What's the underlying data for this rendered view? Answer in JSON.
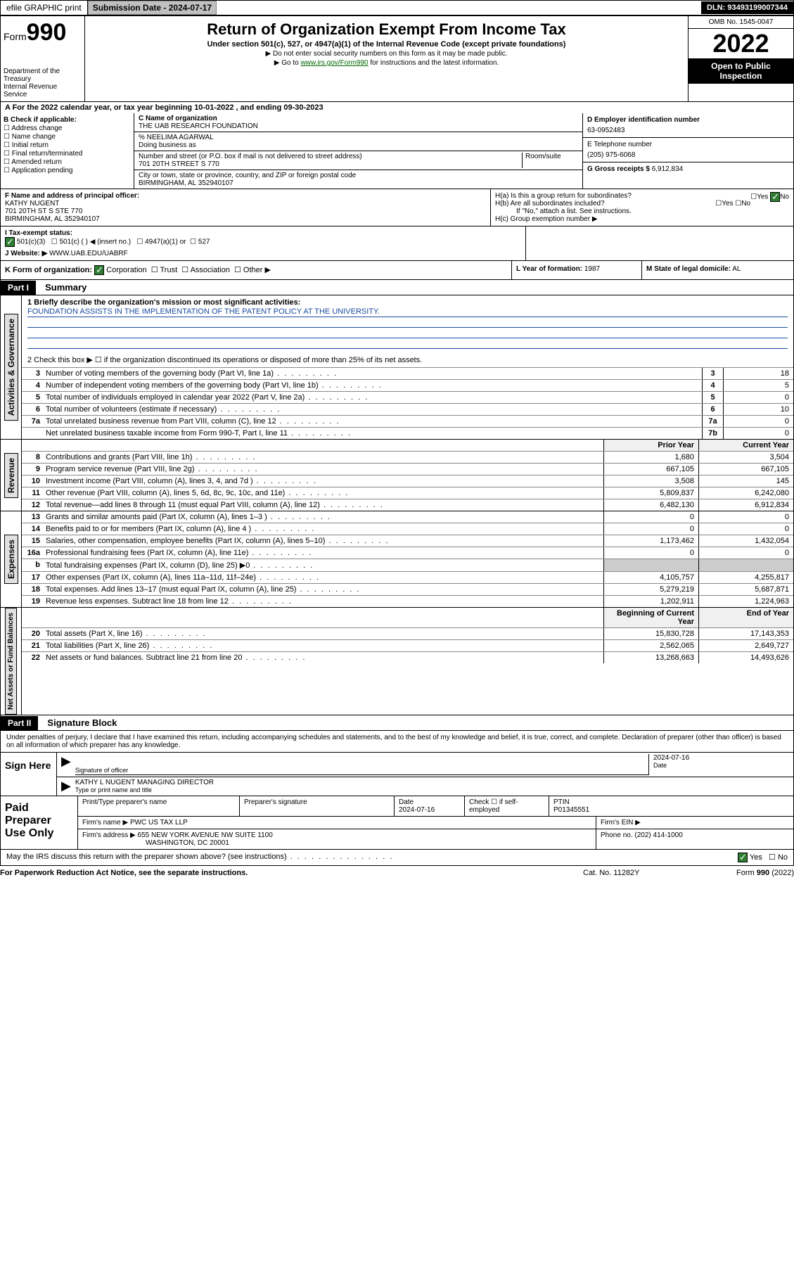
{
  "topbar": {
    "efile": "efile GRAPHIC print",
    "submission_label": "Submission Date - 2024-07-17",
    "dln": "DLN: 93493199007344"
  },
  "header": {
    "form_prefix": "Form",
    "form_num": "990",
    "title": "Return of Organization Exempt From Income Tax",
    "subtitle": "Under section 501(c), 527, or 4947(a)(1) of the Internal Revenue Code (except private foundations)",
    "note1": "▶ Do not enter social security numbers on this form as it may be made public.",
    "note2_prefix": "▶ Go to ",
    "note2_link": "www.irs.gov/Form990",
    "note2_suffix": " for instructions and the latest information.",
    "dept": "Department of the Treasury\nInternal Revenue Service",
    "omb": "OMB No. 1545-0047",
    "year": "2022",
    "open": "Open to Public Inspection"
  },
  "A": {
    "text": "A For the 2022 calendar year, or tax year beginning 10-01-2022   , and ending 09-30-2023"
  },
  "B": {
    "label": "B Check if applicable:",
    "items": [
      "Address change",
      "Name change",
      "Initial return",
      "Final return/terminated",
      "Amended return",
      "Application pending"
    ]
  },
  "C": {
    "name_label": "C Name of organization",
    "name": "THE UAB RESEARCH FOUNDATION",
    "care_of": "% NEELIMA AGARWAL",
    "dba_label": "Doing business as",
    "street_label": "Number and street (or P.O. box if mail is not delivered to street address)",
    "room_label": "Room/suite",
    "street": "701 20TH STREET S 770",
    "city_label": "City or town, state or province, country, and ZIP or foreign postal code",
    "city": "BIRMINGHAM, AL  352940107"
  },
  "D": {
    "label": "D Employer identification number",
    "value": "63-0952483"
  },
  "E": {
    "label": "E Telephone number",
    "value": "(205) 975-6068"
  },
  "G": {
    "label": "G Gross receipts $",
    "value": "6,912,834"
  },
  "F": {
    "label": "F  Name and address of principal officer:",
    "name": "KATHY NUGENT",
    "addr1": "701 20TH ST S STE 770",
    "addr2": "BIRMINGHAM, AL  352940107"
  },
  "H": {
    "a": "H(a)  Is this a group return for subordinates?",
    "b": "H(b)  Are all subordinates included?",
    "b_note": "If \"No,\" attach a list. See instructions.",
    "c": "H(c)  Group exemption number ▶",
    "yes": "Yes",
    "no": "No"
  },
  "I": {
    "label": "I   Tax-exempt status:",
    "opt1": "501(c)(3)",
    "opt2": "501(c) (  ) ◀ (insert no.)",
    "opt3": "4947(a)(1) or",
    "opt4": "527"
  },
  "J": {
    "label": "J   Website: ▶",
    "value": "WWW.UAB.EDU/UABRF"
  },
  "K": {
    "label": "K Form of organization:",
    "corp": "Corporation",
    "trust": "Trust",
    "assoc": "Association",
    "other": "Other ▶"
  },
  "L": {
    "label": "L Year of formation:",
    "value": "1987"
  },
  "M": {
    "label": "M State of legal domicile:",
    "value": "AL"
  },
  "part1": {
    "header": "Part I",
    "title": "Summary"
  },
  "mission": {
    "label": "1  Briefly describe the organization's mission or most significant activities:",
    "text": "FOUNDATION ASSISTS IN THE IMPLEMENTATION OF THE PATENT POLICY AT THE UNIVERSITY."
  },
  "line2": "2   Check this box ▶ ☐  if the organization discontinued its operations or disposed of more than 25% of its net assets.",
  "gov_lines": [
    {
      "n": "3",
      "t": "Number of voting members of the governing body (Part VI, line 1a)",
      "box": "3",
      "v": "18"
    },
    {
      "n": "4",
      "t": "Number of independent voting members of the governing body (Part VI, line 1b)",
      "box": "4",
      "v": "5"
    },
    {
      "n": "5",
      "t": "Total number of individuals employed in calendar year 2022 (Part V, line 2a)",
      "box": "5",
      "v": "0"
    },
    {
      "n": "6",
      "t": "Total number of volunteers (estimate if necessary)",
      "box": "6",
      "v": "10"
    },
    {
      "n": "7a",
      "t": "Total unrelated business revenue from Part VIII, column (C), line 12",
      "box": "7a",
      "v": "0"
    },
    {
      "n": "",
      "t": "Net unrelated business taxable income from Form 990-T, Part I, line 11",
      "box": "7b",
      "v": "0"
    }
  ],
  "col_headers": {
    "prior": "Prior Year",
    "current": "Current Year",
    "boy": "Beginning of Current Year",
    "eoy": "End of Year"
  },
  "revenue": [
    {
      "n": "8",
      "t": "Contributions and grants (Part VIII, line 1h)",
      "p": "1,680",
      "c": "3,504"
    },
    {
      "n": "9",
      "t": "Program service revenue (Part VIII, line 2g)",
      "p": "667,105",
      "c": "667,105"
    },
    {
      "n": "10",
      "t": "Investment income (Part VIII, column (A), lines 3, 4, and 7d )",
      "p": "3,508",
      "c": "145"
    },
    {
      "n": "11",
      "t": "Other revenue (Part VIII, column (A), lines 5, 6d, 8c, 9c, 10c, and 11e)",
      "p": "5,809,837",
      "c": "6,242,080"
    },
    {
      "n": "12",
      "t": "Total revenue—add lines 8 through 11 (must equal Part VIII, column (A), line 12)",
      "p": "6,482,130",
      "c": "6,912,834"
    }
  ],
  "expenses": [
    {
      "n": "13",
      "t": "Grants and similar amounts paid (Part IX, column (A), lines 1–3 )",
      "p": "0",
      "c": "0"
    },
    {
      "n": "14",
      "t": "Benefits paid to or for members (Part IX, column (A), line 4 )",
      "p": "0",
      "c": "0"
    },
    {
      "n": "15",
      "t": "Salaries, other compensation, employee benefits (Part IX, column (A), lines 5–10)",
      "p": "1,173,462",
      "c": "1,432,054"
    },
    {
      "n": "16a",
      "t": "Professional fundraising fees (Part IX, column (A), line 11e)",
      "p": "0",
      "c": "0"
    },
    {
      "n": "b",
      "t": "Total fundraising expenses (Part IX, column (D), line 25) ▶0",
      "p": "",
      "c": ""
    },
    {
      "n": "17",
      "t": "Other expenses (Part IX, column (A), lines 11a–11d, 11f–24e)",
      "p": "4,105,757",
      "c": "4,255,817"
    },
    {
      "n": "18",
      "t": "Total expenses. Add lines 13–17 (must equal Part IX, column (A), line 25)",
      "p": "5,279,219",
      "c": "5,687,871"
    },
    {
      "n": "19",
      "t": "Revenue less expenses. Subtract line 18 from line 12",
      "p": "1,202,911",
      "c": "1,224,963"
    }
  ],
  "netassets": [
    {
      "n": "20",
      "t": "Total assets (Part X, line 16)",
      "p": "15,830,728",
      "c": "17,143,353"
    },
    {
      "n": "21",
      "t": "Total liabilities (Part X, line 26)",
      "p": "2,562,065",
      "c": "2,649,727"
    },
    {
      "n": "22",
      "t": "Net assets or fund balances. Subtract line 21 from line 20",
      "p": "13,268,663",
      "c": "14,493,626"
    }
  ],
  "vtabs": {
    "gov": "Activities & Governance",
    "rev": "Revenue",
    "exp": "Expenses",
    "net": "Net Assets or Fund Balances"
  },
  "part2": {
    "header": "Part II",
    "title": "Signature Block"
  },
  "sig": {
    "declaration": "Under penalties of perjury, I declare that I have examined this return, including accompanying schedules and statements, and to the best of my knowledge and belief, it is true, correct, and complete. Declaration of preparer (other than officer) is based on all information of which preparer has any knowledge.",
    "sign_here": "Sign Here",
    "sig_officer": "Signature of officer",
    "date_label": "Date",
    "date": "2024-07-16",
    "name": "KATHY L NUGENT MANAGING DIRECTOR",
    "name_label": "Type or print name and title"
  },
  "prep": {
    "label": "Paid Preparer Use Only",
    "h1": "Print/Type preparer's name",
    "h2": "Preparer's signature",
    "h3": "Date",
    "date": "2024-07-16",
    "h4": "Check ☐ if self-employed",
    "h5": "PTIN",
    "ptin": "P01345551",
    "firm_label": "Firm's name     ▶",
    "firm": "PWC US TAX LLP",
    "ein_label": "Firm's EIN ▶",
    "addr_label": "Firm's address ▶",
    "addr1": "655 NEW YORK AVENUE NW SUITE 1100",
    "addr2": "WASHINGTON, DC  20001",
    "phone_label": "Phone no.",
    "phone": "(202) 414-1000"
  },
  "discuss": {
    "text": "May the IRS discuss this return with the preparer shown above? (see instructions)",
    "yes": "Yes",
    "no": "No"
  },
  "footer": {
    "l": "For Paperwork Reduction Act Notice, see the separate instructions.",
    "m": "Cat. No. 11282Y",
    "r_prefix": "Form ",
    "r_form": "990",
    "r_suffix": " (2022)"
  },
  "colors": {
    "link": "#006600",
    "header_bg": "#000000",
    "check_green": "#2e7d32",
    "mission_blue": "#1a4ba0"
  }
}
